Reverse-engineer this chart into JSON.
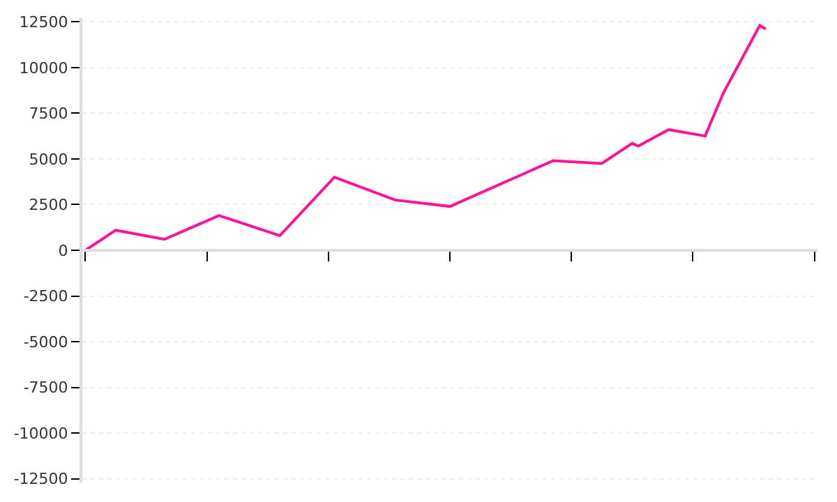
{
  "chart_data": {
    "type": "line",
    "categories": [
      null,
      null,
      null,
      null,
      null,
      null,
      null,
      null,
      null,
      null,
      null,
      null,
      null,
      null,
      null,
      null,
      null,
      null,
      null,
      null,
      null,
      null,
      null,
      null,
      null,
      null,
      null,
      null,
      null,
      null,
      null,
      null,
      null,
      null,
      null,
      null,
      null,
      null,
      null,
      null,
      null,
      null,
      null,
      null,
      null,
      null,
      null,
      null,
      null,
      null,
      null,
      null,
      null,
      null,
      null,
      null,
      null,
      null,
      null,
      null,
      null,
      null,
      null,
      null,
      null,
      null,
      null,
      null,
      null,
      null,
      null,
      null,
      null,
      null,
      null,
      null,
      null,
      null,
      null,
      null,
      null,
      null,
      null,
      null,
      null,
      null,
      null,
      null,
      null,
      null,
      null,
      null,
      null,
      null,
      null,
      null,
      null,
      null,
      null,
      null,
      null,
      null,
      null,
      null,
      null,
      null,
      null,
      null,
      null,
      null,
      null,
      null,
      null,
      null,
      null,
      null,
      null,
      null,
      null,
      null,
      null
    ],
    "series": [
      {
        "color": "#ff1493",
        "values": [
          0,
          null,
          null,
          null,
          null,
          1100,
          null,
          null,
          null,
          null,
          null,
          null,
          null,
          600,
          null,
          null,
          null,
          null,
          null,
          null,
          null,
          null,
          1900,
          null,
          null,
          null,
          null,
          null,
          null,
          null,
          null,
          null,
          800,
          null,
          null,
          null,
          null,
          null,
          null,
          null,
          null,
          4000,
          null,
          null,
          null,
          null,
          null,
          null,
          null,
          null,
          null,
          2750,
          null,
          null,
          null,
          null,
          null,
          null,
          null,
          null,
          2400,
          null,
          null,
          null,
          null,
          null,
          null,
          null,
          null,
          null,
          null,
          null,
          null,
          null,
          null,
          null,
          null,
          4900,
          null,
          null,
          null,
          null,
          null,
          null,
          null,
          4750,
          null,
          null,
          null,
          null,
          5850,
          5700,
          null,
          null,
          null,
          null,
          6600,
          null,
          null,
          null,
          null,
          null,
          6250,
          null,
          null,
          8600,
          null,
          null,
          null,
          null,
          null,
          12300,
          12100,
          null,
          null,
          null,
          null,
          null,
          null,
          null,
          null
        ]
      }
    ],
    "ylim": [
      -12700,
      12700
    ],
    "yticks": [
      -12500,
      -10000,
      -7500,
      -5000,
      -2500,
      0,
      2500,
      5000,
      7500,
      10000,
      12500
    ],
    "grid": "y",
    "legend": false,
    "marker": "none",
    "line_style": "solid",
    "tick_labels": "y"
  }
}
